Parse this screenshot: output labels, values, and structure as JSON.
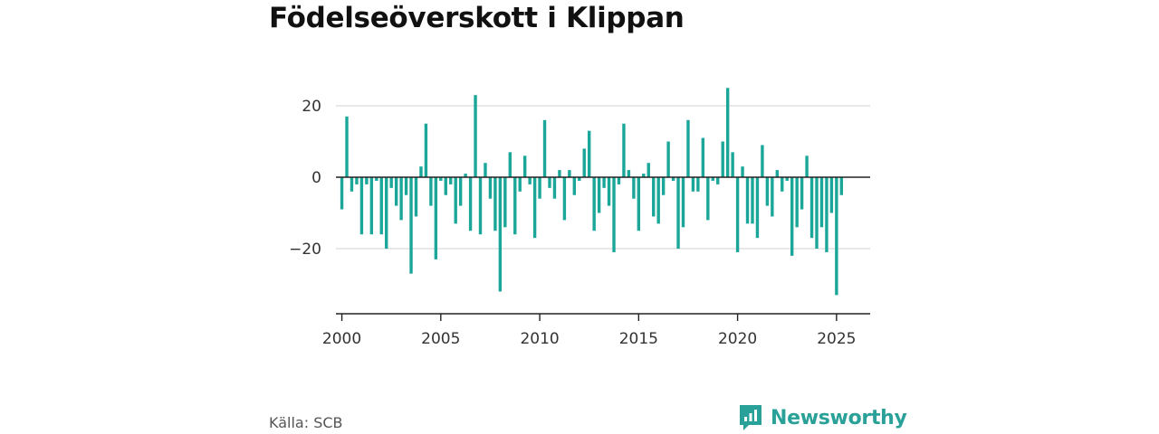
{
  "title": "Födelseöverskott i Klippan",
  "source": "Källa: SCB",
  "brand": "Newsworthy",
  "colors": {
    "bar": "#1aa79a",
    "brand": "#2aa198",
    "grid": "#d9d9d9",
    "axis": "#222222"
  },
  "chart_data": {
    "type": "bar",
    "title": "Födelseöverskott i Klippan",
    "xlabel": "",
    "ylabel": "",
    "frequency": "quarterly",
    "start": "2000 Q1",
    "xlim": [
      1999.7,
      2026.7
    ],
    "ylim": [
      -37,
      37
    ],
    "x_ticks": [
      2000,
      2005,
      2010,
      2015,
      2020,
      2025
    ],
    "y_ticks": [
      -20,
      0,
      20
    ],
    "y_tick_labels": [
      "−20",
      "0",
      "20"
    ],
    "grid": true,
    "values": [
      -9,
      17,
      -4,
      -2,
      -16,
      -2,
      -16,
      -1,
      -16,
      -20,
      -3,
      -8,
      -12,
      -5,
      -27,
      -11,
      3,
      15,
      -8,
      -23,
      -1,
      -5,
      -2,
      -13,
      -8,
      1,
      -15,
      23,
      -16,
      4,
      -6,
      -15,
      -32,
      -14,
      7,
      -16,
      -4,
      6,
      -2,
      -17,
      -6,
      16,
      -3,
      -6,
      2,
      -12,
      2,
      -5,
      -1,
      8,
      13,
      -15,
      -10,
      -3,
      -8,
      -21,
      -2,
      15,
      2,
      -6,
      -15,
      1,
      4,
      -11,
      -13,
      -5,
      10,
      -1,
      -20,
      -14,
      16,
      -4,
      -4,
      11,
      -12,
      -1,
      -2,
      10,
      25,
      7,
      -21,
      3,
      -13,
      -13,
      -17,
      9,
      -8,
      -11,
      2,
      -4,
      -1,
      -22,
      -14,
      -9,
      6,
      -17,
      -20,
      -14,
      -21,
      -10,
      -33,
      -5
    ]
  }
}
